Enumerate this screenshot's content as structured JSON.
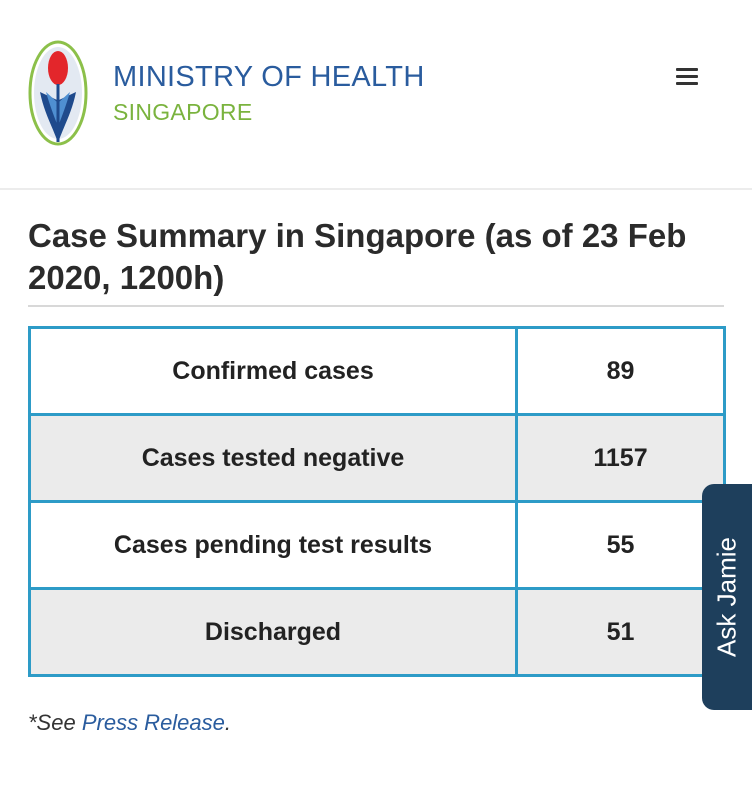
{
  "header": {
    "org_name": "MINISTRY OF HEALTH",
    "org_sub": "SINGAPORE",
    "menu_icon": "hamburger-menu-icon"
  },
  "title": "Case Summary in Singapore (as of 23 Feb 2020, 1200h)",
  "table": {
    "rows": [
      {
        "label": "Confirmed cases",
        "value": "89"
      },
      {
        "label": "Cases tested negative",
        "value": "1157"
      },
      {
        "label": "Cases pending test results",
        "value": "55"
      },
      {
        "label": "Discharged",
        "value": "51"
      }
    ]
  },
  "footnote": {
    "prefix": "*See ",
    "link_text": "Press Release",
    "suffix": "."
  },
  "ask_tab": {
    "label": "Ask Jamie"
  },
  "colors": {
    "brand_blue": "#2a5c9e",
    "brand_green": "#7ab33e",
    "table_border": "#2d9bc7",
    "ask_tab_bg": "#1e3f5c"
  }
}
